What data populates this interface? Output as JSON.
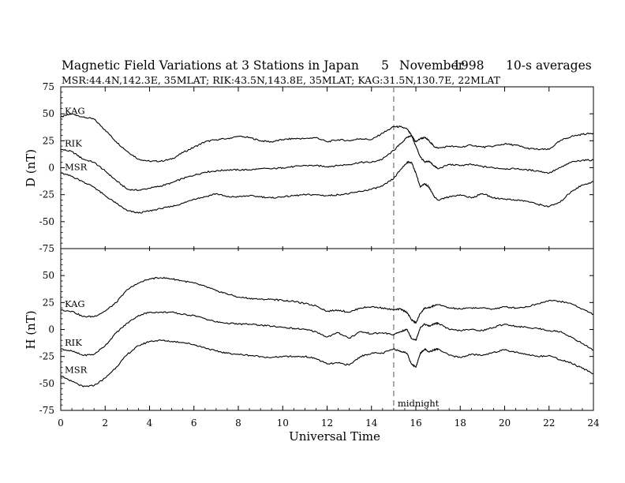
{
  "title": {
    "main": "Magnetic Field Variations at 3 Stations in Japan",
    "day": "5",
    "month": "November",
    "year": "1998",
    "averaging": "10-s averages"
  },
  "subtitle": "MSR:44.4N,142.3E, 35MLAT;  RIK:43.5N,143.8E, 35MLAT;  KAG:31.5N,130.7E, 22MLAT",
  "chart_data": [
    {
      "type": "line",
      "ylabel": "D (nT)",
      "ylim": [
        -75,
        75
      ],
      "yticks": [
        "75",
        "50",
        "25",
        "0",
        "-25",
        "-50",
        "-75"
      ],
      "xlim": [
        0,
        24
      ],
      "annotations": [
        {
          "text": "midnight",
          "x": 15,
          "style": "dashed-vertical-line"
        }
      ],
      "series": [
        {
          "name": "KAG",
          "x": [
            0,
            0.5,
            1,
            1.5,
            2,
            2.5,
            3,
            3.5,
            4,
            4.5,
            5,
            5.5,
            6,
            6.5,
            7,
            7.5,
            8,
            8.5,
            9,
            9.5,
            10,
            10.5,
            11,
            11.5,
            12,
            12.5,
            13,
            13.5,
            14,
            14.5,
            15,
            15.3,
            15.6,
            15.8,
            16,
            16.2,
            16.4,
            16.6,
            16.8,
            17,
            17.5,
            18,
            18.5,
            19,
            19.5,
            20,
            20.5,
            21,
            21.5,
            22,
            22.5,
            23,
            23.5,
            24
          ],
          "y": [
            47,
            50,
            47,
            45,
            35,
            24,
            15,
            8,
            6,
            6,
            8,
            14,
            19,
            24,
            26,
            27,
            29,
            28,
            25,
            24,
            26,
            27,
            27,
            28,
            24,
            26,
            25,
            27,
            26,
            32,
            38,
            38,
            36,
            30,
            24,
            27,
            28,
            25,
            20,
            18,
            20,
            19,
            21,
            19,
            20,
            22,
            21,
            18,
            17,
            17,
            25,
            29,
            31,
            32
          ]
        },
        {
          "name": "RIK",
          "x": [
            0,
            0.5,
            1,
            1.5,
            2,
            2.5,
            3,
            3.5,
            4,
            4.5,
            5,
            5.5,
            6,
            6.5,
            7,
            7.5,
            8,
            8.5,
            9,
            9.5,
            10,
            10.5,
            11,
            11.5,
            12,
            12.5,
            13,
            13.5,
            14,
            14.5,
            15,
            15.3,
            15.6,
            15.8,
            16,
            16.2,
            16.4,
            16.6,
            16.8,
            17,
            17.5,
            18,
            18.5,
            19,
            19.5,
            20,
            20.5,
            21,
            21.5,
            22,
            22.5,
            23,
            23.5,
            24
          ],
          "y": [
            17,
            15,
            8,
            5,
            -3,
            -12,
            -20,
            -21,
            -19,
            -17,
            -14,
            -10,
            -7,
            -4,
            -3,
            -2,
            -2,
            -2,
            -1,
            -1,
            0,
            1,
            2,
            2,
            1,
            2,
            3,
            5,
            5,
            8,
            16,
            22,
            28,
            30,
            20,
            10,
            5,
            6,
            2,
            -1,
            3,
            2,
            3,
            1,
            0,
            -1,
            -1,
            -2,
            -3,
            -5,
            0,
            5,
            7,
            7
          ]
        },
        {
          "name": "MSR",
          "x": [
            0,
            0.5,
            1,
            1.5,
            2,
            2.5,
            3,
            3.5,
            4,
            4.5,
            5,
            5.5,
            6,
            6.5,
            7,
            7.5,
            8,
            8.5,
            9,
            9.5,
            10,
            10.5,
            11,
            11.5,
            12,
            12.5,
            13,
            13.5,
            14,
            14.5,
            15,
            15.3,
            15.6,
            15.8,
            16,
            16.2,
            16.4,
            16.6,
            16.8,
            17,
            17.5,
            18,
            18.5,
            19,
            19.5,
            20,
            20.5,
            21,
            21.5,
            22,
            22.5,
            23,
            23.5,
            24
          ],
          "y": [
            -5,
            -8,
            -13,
            -18,
            -26,
            -33,
            -40,
            -42,
            -40,
            -38,
            -36,
            -33,
            -29,
            -27,
            -24,
            -27,
            -27,
            -26,
            -27,
            -28,
            -27,
            -26,
            -25,
            -25,
            -26,
            -25,
            -24,
            -22,
            -20,
            -17,
            -10,
            -2,
            5,
            5,
            -5,
            -18,
            -15,
            -18,
            -26,
            -30,
            -27,
            -25,
            -28,
            -24,
            -28,
            -29,
            -30,
            -31,
            -34,
            -36,
            -32,
            -22,
            -16,
            -13
          ]
        }
      ]
    },
    {
      "type": "line",
      "ylabel": "H (nT)",
      "xlabel": "Universal Time",
      "ylim": [
        -75,
        75
      ],
      "yticks": [
        "50",
        "25",
        "0",
        "-25",
        "-50",
        "-75"
      ],
      "xlim": [
        0,
        24
      ],
      "xticks": [
        "0",
        "2",
        "4",
        "6",
        "8",
        "10",
        "12",
        "14",
        "16",
        "18",
        "20",
        "22",
        "24"
      ],
      "annotations": [
        {
          "text": "midnight",
          "x": 15,
          "style": "dashed-vertical-line"
        }
      ],
      "series": [
        {
          "name": "KAG",
          "x": [
            0,
            0.5,
            1,
            1.5,
            2,
            2.5,
            3,
            3.5,
            4,
            4.5,
            5,
            5.5,
            6,
            6.5,
            7,
            7.5,
            8,
            8.5,
            9,
            9.5,
            10,
            10.5,
            11,
            11.5,
            12,
            12.5,
            13,
            13.5,
            14,
            14.5,
            15,
            15.3,
            15.6,
            15.8,
            16,
            16.2,
            16.4,
            16.6,
            16.8,
            17,
            17.5,
            18,
            18.5,
            19,
            19.5,
            20,
            20.5,
            21,
            21.5,
            22,
            22.5,
            23,
            23.5,
            24
          ],
          "y": [
            18,
            17,
            12,
            12,
            17,
            25,
            37,
            43,
            47,
            48,
            47,
            45,
            43,
            40,
            36,
            33,
            30,
            29,
            28,
            28,
            27,
            26,
            24,
            22,
            17,
            18,
            16,
            20,
            21,
            20,
            18,
            19,
            16,
            9,
            6,
            15,
            20,
            20,
            22,
            23,
            20,
            19,
            20,
            20,
            19,
            21,
            20,
            21,
            24,
            27,
            26,
            24,
            19,
            14
          ]
        },
        {
          "name": "RIK",
          "x": [
            0,
            0.5,
            1,
            1.5,
            2,
            2.5,
            3,
            3.5,
            4,
            4.5,
            5,
            5.5,
            6,
            6.5,
            7,
            7.5,
            8,
            8.5,
            9,
            9.5,
            10,
            10.5,
            11,
            11.5,
            12,
            12.5,
            13,
            13.5,
            14,
            14.5,
            15,
            15.3,
            15.6,
            15.8,
            16,
            16.2,
            16.4,
            16.6,
            16.8,
            17,
            17.5,
            18,
            18.5,
            19,
            19.5,
            20,
            20.5,
            21,
            21.5,
            22,
            22.5,
            23,
            23.5,
            24
          ],
          "y": [
            -18,
            -20,
            -24,
            -23,
            -15,
            -3,
            6,
            13,
            16,
            16,
            16,
            14,
            13,
            10,
            7,
            6,
            5,
            5,
            4,
            3,
            2,
            1,
            0,
            -2,
            -7,
            -3,
            -8,
            -2,
            -4,
            -3,
            -5,
            -2,
            0,
            -8,
            -10,
            2,
            5,
            3,
            5,
            6,
            0,
            -1,
            0,
            -1,
            2,
            5,
            3,
            2,
            1,
            -1,
            -2,
            -7,
            -13,
            -19
          ]
        },
        {
          "name": "MSR",
          "x": [
            0,
            0.5,
            1,
            1.5,
            2,
            2.5,
            3,
            3.5,
            4,
            4.5,
            5,
            5.5,
            6,
            6.5,
            7,
            7.5,
            8,
            8.5,
            9,
            9.5,
            10,
            10.5,
            11,
            11.5,
            12,
            12.5,
            13,
            13.5,
            14,
            14.5,
            15,
            15.3,
            15.6,
            15.8,
            16,
            16.2,
            16.4,
            16.6,
            16.8,
            17,
            17.5,
            18,
            18.5,
            19,
            19.5,
            20,
            20.5,
            21,
            21.5,
            22,
            22.5,
            23,
            23.5,
            24
          ],
          "y": [
            -43,
            -48,
            -53,
            -52,
            -45,
            -35,
            -23,
            -15,
            -11,
            -10,
            -11,
            -12,
            -14,
            -17,
            -20,
            -22,
            -23,
            -24,
            -25,
            -26,
            -25,
            -25,
            -25,
            -27,
            -32,
            -31,
            -33,
            -25,
            -22,
            -22,
            -18,
            -20,
            -22,
            -32,
            -35,
            -22,
            -18,
            -21,
            -19,
            -18,
            -24,
            -26,
            -23,
            -24,
            -21,
            -19,
            -21,
            -23,
            -25,
            -24,
            -28,
            -31,
            -36,
            -41
          ]
        }
      ]
    }
  ]
}
